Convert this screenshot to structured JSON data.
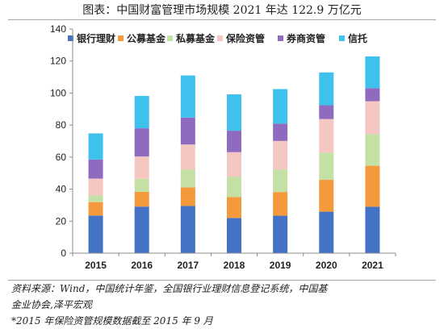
{
  "title": "图表：中国财富管理市场规模 2021 年达 122.9 万亿元",
  "source_lines": [
    "资料来源：Wind，中国统计年鉴，全国银行业理财信息登记系统，中国基",
    "金业协会,泽平宏观",
    "*2015 年保险资管规模数据截至 2015 年 9 月"
  ],
  "chart_data": {
    "type": "bar",
    "stacked": true,
    "title": "图表：中国财富管理市场规模 2021 年达 122.9 万亿元",
    "xlabel": "",
    "ylabel": "",
    "ylim": [
      0,
      140
    ],
    "yticks": [
      0,
      20,
      40,
      60,
      80,
      100,
      120,
      140
    ],
    "grid": false,
    "legend_position": "top",
    "categories": [
      "2015",
      "2016",
      "2017",
      "2018",
      "2019",
      "2020",
      "2021"
    ],
    "series": [
      {
        "name": "银行理财",
        "color": "#4472C4",
        "values": [
          23.5,
          29.1,
          29.5,
          22.0,
          23.4,
          25.9,
          29.0
        ]
      },
      {
        "name": "公募基金",
        "color": "#F59A3C",
        "values": [
          8.4,
          9.2,
          11.6,
          13.0,
          14.8,
          19.9,
          25.6
        ]
      },
      {
        "name": "私募基金",
        "color": "#C5E0A5",
        "values": [
          4.2,
          8.1,
          11.1,
          12.8,
          14.1,
          17.0,
          19.8
        ]
      },
      {
        "name": "保险资管",
        "color": "#F4C7C3",
        "values": [
          10.5,
          14.0,
          15.7,
          15.3,
          17.8,
          21.0,
          20.5
        ]
      },
      {
        "name": "券商资管",
        "color": "#8E6BBE",
        "values": [
          11.9,
          17.6,
          16.8,
          13.4,
          10.8,
          8.6,
          8.2
        ]
      },
      {
        "name": "信托",
        "color": "#3FC1EE",
        "values": [
          16.3,
          20.2,
          26.3,
          22.7,
          21.6,
          20.5,
          19.8
        ]
      }
    ]
  }
}
